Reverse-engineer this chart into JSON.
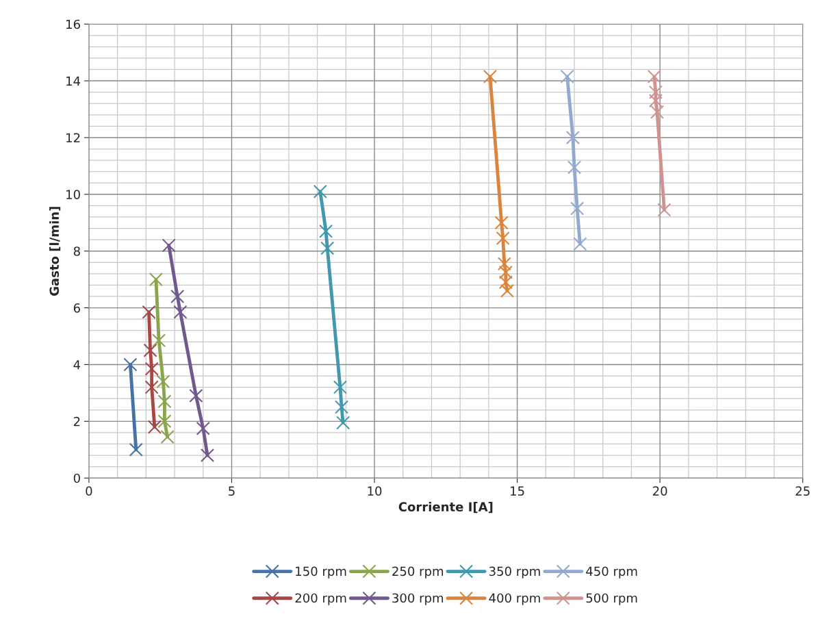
{
  "chart_data": {
    "type": "line",
    "xlabel": "Corriente I[A]",
    "ylabel": "Gasto [l/min]",
    "xlim": [
      0,
      25
    ],
    "xticks": [
      0,
      5,
      10,
      15,
      20,
      25
    ],
    "ylim": [
      0,
      16
    ],
    "yticks": [
      0,
      2,
      4,
      6,
      8,
      10,
      12,
      14,
      16
    ],
    "grid": true,
    "legend": "bottom",
    "marker": "cross",
    "line_style": "solid",
    "series": [
      {
        "name": "150 rpm",
        "color": "#4572a7",
        "x": [
          1.45,
          1.65
        ],
        "values": [
          4.0,
          1.0
        ]
      },
      {
        "name": "200 rpm",
        "color": "#aa4643",
        "x": [
          2.1,
          2.15,
          2.2,
          2.2,
          2.3
        ],
        "values": [
          5.85,
          4.5,
          3.85,
          3.2,
          1.8
        ]
      },
      {
        "name": "250 rpm",
        "color": "#89a54e",
        "x": [
          2.35,
          2.45,
          2.6,
          2.65,
          2.65,
          2.75
        ],
        "values": [
          7.0,
          4.85,
          3.4,
          2.7,
          2.0,
          1.45
        ]
      },
      {
        "name": "300 rpm",
        "color": "#71588f",
        "x": [
          2.8,
          3.1,
          3.2,
          3.75,
          4.0,
          4.15
        ],
        "values": [
          8.2,
          6.4,
          5.85,
          2.9,
          1.75,
          0.8
        ]
      },
      {
        "name": "350 rpm",
        "color": "#4198af",
        "x": [
          8.1,
          8.3,
          8.35,
          8.8,
          8.85,
          8.9
        ],
        "values": [
          10.1,
          8.7,
          8.1,
          3.2,
          2.5,
          1.95
        ]
      },
      {
        "name": "400 rpm",
        "color": "#db843d",
        "x": [
          14.05,
          14.45,
          14.5,
          14.55,
          14.6,
          14.6,
          14.65
        ],
        "values": [
          14.15,
          9.0,
          8.45,
          7.55,
          7.25,
          6.9,
          6.6
        ]
      },
      {
        "name": "450 rpm",
        "color": "#93a9cf",
        "x": [
          16.75,
          16.95,
          17.0,
          17.1,
          17.2
        ],
        "values": [
          14.15,
          12.0,
          10.95,
          9.5,
          8.25
        ]
      },
      {
        "name": "500 rpm",
        "color": "#d19392",
        "x": [
          19.8,
          19.85,
          19.85,
          19.9,
          20.15
        ],
        "values": [
          14.15,
          13.6,
          13.3,
          12.9,
          9.45
        ]
      }
    ]
  }
}
